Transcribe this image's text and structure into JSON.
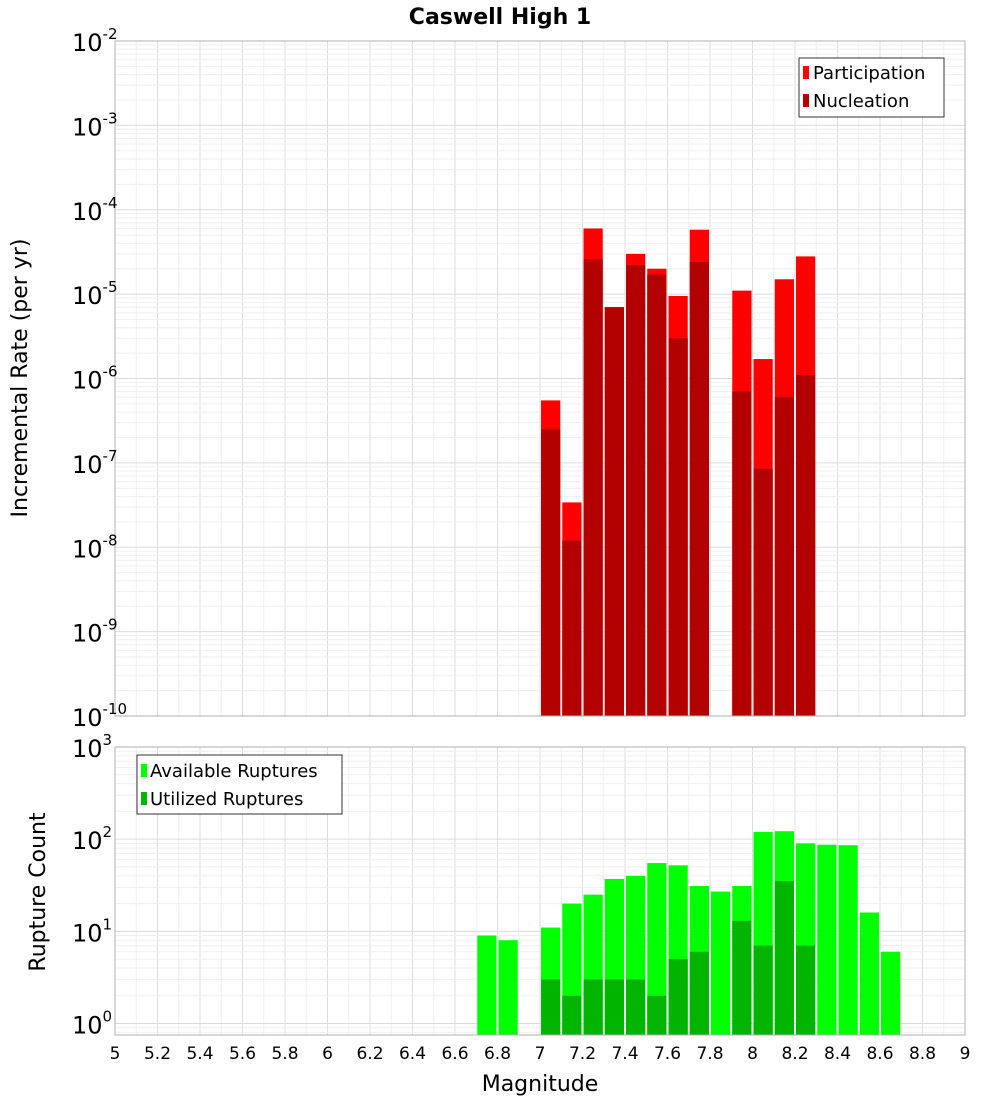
{
  "chart_data": [
    {
      "type": "bar",
      "title": "Caswell High 1",
      "xlabel": "",
      "ylabel": "Incremental Rate (per yr)",
      "xlim": [
        5,
        9
      ],
      "ylim": [
        1e-10,
        0.01
      ],
      "yscale": "log",
      "y_tick_exponents": [
        "-10",
        "-9",
        "-8",
        "-7",
        "-6",
        "-5",
        "-4",
        "-3",
        "-2"
      ],
      "bar_width": 0.1,
      "grid": true,
      "legend_position": "top-right",
      "x": [
        7.05,
        7.15,
        7.25,
        7.35,
        7.45,
        7.55,
        7.65,
        7.75,
        7.95,
        8.05,
        8.15,
        8.25
      ],
      "series": [
        {
          "name": "Participation",
          "color": "#ff0000",
          "values": [
            5.5e-07,
            3.4e-08,
            6e-05,
            7e-06,
            3e-05,
            2e-05,
            9.5e-06,
            5.8e-05,
            1.1e-05,
            1.7e-06,
            1.5e-05,
            2.8e-05
          ]
        },
        {
          "name": "Nucleation",
          "color": "#b30000",
          "values": [
            2.5e-07,
            1.2e-08,
            2.6e-05,
            7e-06,
            2.2e-05,
            1.7e-05,
            3e-06,
            2.4e-05,
            7e-07,
            8.5e-08,
            6e-07,
            1.1e-06
          ]
        }
      ]
    },
    {
      "type": "bar",
      "title": "",
      "xlabel": "Magnitude",
      "ylabel": "Rupture Count",
      "xlim": [
        5,
        9
      ],
      "ylim": [
        0.75,
        1000
      ],
      "yscale": "log",
      "y_tick_exponents": [
        "0",
        "1",
        "2",
        "3"
      ],
      "x_ticks": [
        "5",
        "5.2",
        "5.4",
        "5.6",
        "5.8",
        "6",
        "6.2",
        "6.4",
        "6.6",
        "6.8",
        "7",
        "7.2",
        "7.4",
        "7.6",
        "7.8",
        "8",
        "8.2",
        "8.4",
        "8.6",
        "8.8",
        "9"
      ],
      "bar_width": 0.1,
      "grid": true,
      "legend_position": "top-left",
      "x": [
        6.75,
        6.85,
        7.05,
        7.15,
        7.25,
        7.35,
        7.45,
        7.55,
        7.65,
        7.75,
        7.85,
        7.95,
        8.05,
        8.15,
        8.25,
        8.35,
        8.45,
        8.55,
        8.65
      ],
      "series": [
        {
          "name": "Available Ruptures",
          "color": "#00ff00",
          "values": [
            9,
            8,
            11,
            20,
            25,
            37,
            40,
            55,
            52,
            31,
            27,
            31,
            120,
            122,
            90,
            87,
            86,
            16,
            6
          ]
        },
        {
          "name": "Utilized Ruptures",
          "color": "#00b400",
          "values": [
            0,
            0,
            3,
            2,
            3,
            3,
            3,
            2,
            5,
            6,
            0,
            13,
            7,
            35,
            7,
            0,
            0,
            0,
            0
          ]
        }
      ]
    }
  ]
}
